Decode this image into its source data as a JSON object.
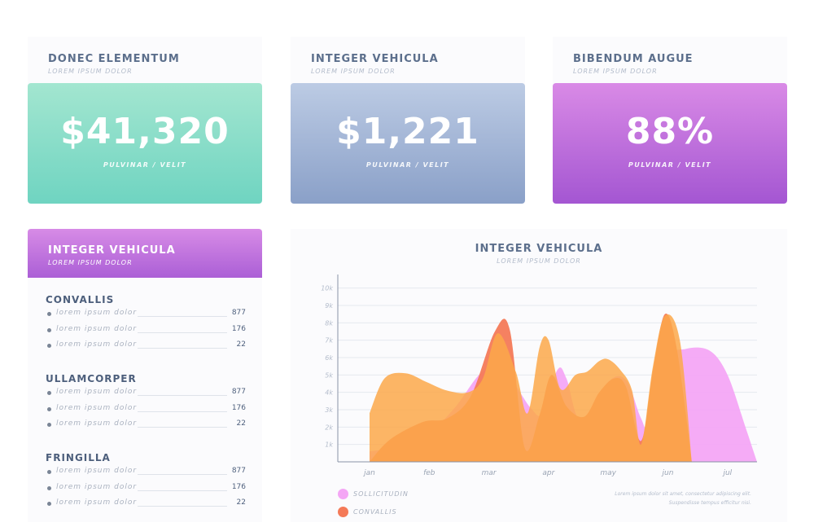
{
  "cards": [
    {
      "title": "DONEC ELEMENTUM",
      "subtitle": "LOREM IPSUM DOLOR",
      "value": "$41,320",
      "footer": "PULVINAR / VELIT"
    },
    {
      "title": "INTEGER VEHICULA",
      "subtitle": "LOREM IPSUM DOLOR",
      "value": "$1,221",
      "footer": "PULVINAR / VELIT"
    },
    {
      "title": "BIBENDUM AUGUE",
      "subtitle": "LOREM IPSUM DOLOR",
      "value": "88%",
      "footer": "PULVINAR / VELIT"
    }
  ],
  "list_panel": {
    "title": "INTEGER VEHICULA",
    "subtitle": "LOREM IPSUM DOLOR",
    "groups": [
      {
        "title": "CONVALLIS",
        "rows": [
          {
            "label": "lorem ipsum dolor",
            "value": "877"
          },
          {
            "label": "lorem ipsum dolor",
            "value": "176"
          },
          {
            "label": "lorem ipsum dolor",
            "value": "22"
          }
        ]
      },
      {
        "title": "ULLAMCORPER",
        "rows": [
          {
            "label": "lorem ipsum dolor",
            "value": "877"
          },
          {
            "label": "lorem ipsum dolor",
            "value": "176"
          },
          {
            "label": "lorem ipsum dolor",
            "value": "22"
          }
        ]
      },
      {
        "title": "FRINGILLA",
        "rows": [
          {
            "label": "lorem ipsum dolor",
            "value": "877"
          },
          {
            "label": "lorem ipsum dolor",
            "value": "176"
          },
          {
            "label": "lorem ipsum dolor",
            "value": "22"
          }
        ]
      }
    ]
  },
  "chart_panel": {
    "note_line1": "Lorem ipsum dolor sit amet, consectetur adipiscing elit.",
    "note_line2": "Suspendisse tempus efficitur nisi."
  },
  "chart_data": {
    "type": "area",
    "title": "INTEGER VEHICULA",
    "subtitle": "LOREM IPSUM DOLOR",
    "categories": [
      "jan",
      "feb",
      "mar",
      "apr",
      "may",
      "jun",
      "jul"
    ],
    "y_ticks": [
      "1k",
      "2k",
      "3k",
      "4k",
      "5k",
      "6k",
      "7k",
      "8k",
      "9k",
      "10k"
    ],
    "ylim": [
      0,
      10.5
    ],
    "grid": true,
    "legend_position": "bottom-left",
    "series": [
      {
        "name": "SOLLICITUDIN",
        "color": "#f4a6f5",
        "x": [
          0.0,
          0.8,
          1.4,
          1.9,
          2.3,
          2.7,
          2.9,
          3.15,
          3.3,
          3.55,
          4.0,
          4.3,
          4.55,
          4.75,
          5.0,
          5.3,
          5.7,
          6.0,
          6.3,
          6.5
        ],
        "values": [
          0.6,
          1.1,
          3.0,
          5.2,
          5.0,
          3.1,
          2.8,
          5.3,
          4.8,
          2.3,
          4.6,
          4.7,
          2.5,
          1.5,
          5.8,
          6.5,
          6.4,
          5.0,
          2.0,
          0.0
        ]
      },
      {
        "name": "CONVALLIS",
        "color": "#f47a58",
        "x": [
          0.0,
          0.35,
          0.9,
          1.3,
          1.7,
          2.1,
          2.35,
          2.6,
          2.85,
          3.05,
          3.3,
          3.6,
          3.85,
          4.1,
          4.3,
          4.55,
          4.75,
          4.95,
          5.15,
          5.4
        ],
        "values": [
          0.0,
          1.3,
          2.3,
          2.5,
          3.8,
          7.5,
          7.6,
          0.8,
          2.7,
          5.0,
          3.2,
          2.6,
          4.0,
          4.8,
          4.3,
          1.2,
          5.3,
          8.5,
          6.5,
          0.0
        ]
      },
      {
        "name": "",
        "color": "#fba84a",
        "x": [
          0.0,
          0.25,
          0.6,
          0.95,
          1.3,
          1.65,
          1.9,
          2.15,
          2.45,
          2.65,
          2.85,
          3.0,
          3.2,
          3.45,
          3.65,
          3.85,
          4.0,
          4.2,
          4.4,
          4.55,
          4.75,
          4.95,
          5.2,
          5.4
        ],
        "values": [
          2.8,
          4.8,
          5.1,
          4.6,
          4.1,
          4.0,
          4.8,
          7.4,
          5.2,
          2.8,
          6.6,
          7.0,
          4.2,
          5.0,
          5.2,
          5.8,
          5.9,
          5.3,
          4.1,
          1.0,
          5.5,
          8.4,
          7.0,
          0.0
        ]
      }
    ]
  }
}
